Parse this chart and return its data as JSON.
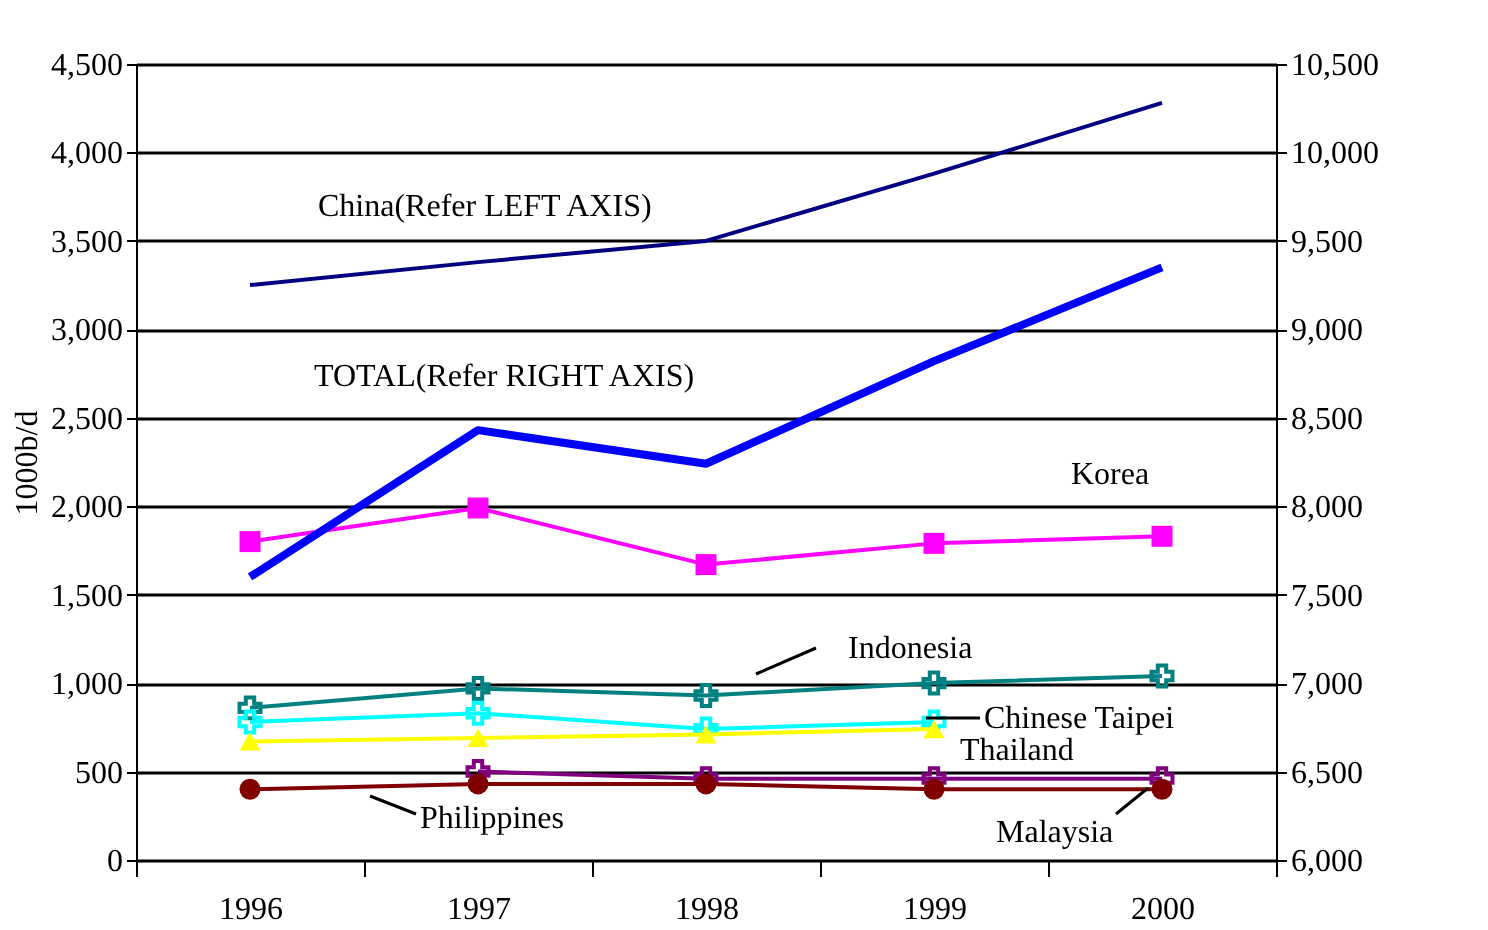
{
  "chart_data": {
    "type": "line",
    "categories": [
      "1996",
      "1997",
      "1998",
      "1999",
      "2000"
    ],
    "ylabel": "1000b/d",
    "ylim": [
      0,
      4500
    ],
    "yticks": [
      0,
      {
        "value": 500,
        "label": "500"
      },
      {
        "value": 1000,
        "label": "1,000"
      },
      {
        "value": 1500,
        "label": "1,500"
      },
      {
        "value": 2000,
        "label": "2,000"
      },
      {
        "value": 2500,
        "label": "2,500"
      },
      {
        "value": 3000,
        "label": "3,000"
      },
      {
        "value": 3500,
        "label": "3,500"
      },
      {
        "value": 4000,
        "label": "4,000"
      },
      {
        "value": 4500,
        "label": "4,500"
      }
    ],
    "y2lim": [
      6000,
      10500
    ],
    "y2ticks": [
      {
        "value": 6000,
        "label": "6,000"
      },
      {
        "value": 6500,
        "label": "6,500"
      },
      {
        "value": 7000,
        "label": "7,000"
      },
      {
        "value": 7500,
        "label": "7,500"
      },
      {
        "value": 8000,
        "label": "8,000"
      },
      {
        "value": 8500,
        "label": "8,500"
      },
      {
        "value": 9000,
        "label": "9,000"
      },
      {
        "value": 9500,
        "label": "9,500"
      },
      {
        "value": 10000,
        "label": "10,000"
      },
      {
        "value": 10500,
        "label": "10,500"
      }
    ],
    "grid": "y",
    "line_style": "solid",
    "series": [
      {
        "name": "China(Refer LEFT AXIS)",
        "color": "#000080",
        "marker": "none",
        "values": [
          3250,
          3380,
          3500,
          3880,
          4280
        ]
      },
      {
        "name": "TOTAL(Refer RIGHT AXIS)",
        "color": "#0000ff",
        "marker": "none",
        "axis": "y2",
        "values": [
          7600,
          8430,
          8240,
          8820,
          9350
        ]
      },
      {
        "name": "Korea",
        "color": "#ff00ff",
        "marker": "square",
        "values": [
          1800,
          1990,
          1670,
          1790,
          1830
        ]
      },
      {
        "name": "Indonesia",
        "color": "#008080",
        "marker": "cross",
        "values": [
          860,
          970,
          930,
          1000,
          1040
        ]
      },
      {
        "name": "Chinese Taipei",
        "color": "#00ffff",
        "marker": "cross",
        "values": [
          780,
          830,
          740,
          780,
          null
        ]
      },
      {
        "name": "Thailand",
        "color": "#ffff00",
        "marker": "triangle",
        "values": [
          670,
          690,
          710,
          740,
          null
        ]
      },
      {
        "name": "Malaysia",
        "color": "#800080",
        "marker": "cross",
        "values": [
          null,
          500,
          460,
          460,
          460
        ]
      },
      {
        "name": "Philippines",
        "color": "#800000",
        "marker": "circle",
        "values": [
          400,
          430,
          430,
          400,
          400
        ]
      }
    ]
  }
}
